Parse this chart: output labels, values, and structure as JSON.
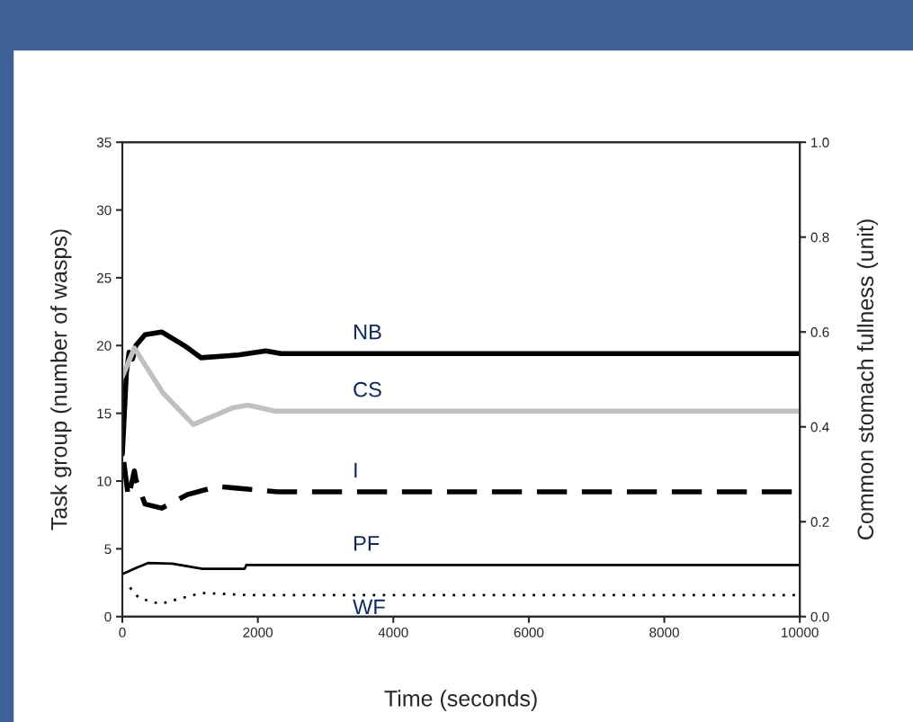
{
  "chart_data": {
    "type": "line",
    "xlabel": "Time (seconds)",
    "ylabel": "Task group (number of wasps)",
    "y2label": "Common stomach fullness (unit)",
    "xlim": [
      0,
      10000
    ],
    "xticks": [
      0,
      2000,
      4000,
      6000,
      8000,
      10000
    ],
    "ylim": [
      0,
      35
    ],
    "yticks": [
      0,
      5,
      10,
      15,
      20,
      25,
      30,
      35
    ],
    "y2lim": [
      0,
      1.0
    ],
    "y2ticks": [
      {
        "value": 0,
        "label": "0.0"
      },
      {
        "value": 0.2,
        "label": "0.2"
      },
      {
        "value": 0.4,
        "label": "0.4"
      },
      {
        "value": 0.6,
        "label": "0.6"
      },
      {
        "value": 0.8,
        "label": "0.8"
      },
      {
        "value": 1.0,
        "label": "1.0"
      }
    ],
    "grid": false,
    "legend": false,
    "series": [
      {
        "name": "NB",
        "color": "#000000",
        "line_style": "solid",
        "x": [
          0,
          30,
          60,
          100,
          150,
          200,
          335,
          580,
          914,
          1160,
          1717,
          2118,
          2341,
          10000
        ],
        "values": [
          12,
          15,
          18,
          19.5,
          19,
          20,
          20.8,
          21.0,
          20.0,
          19.1,
          19.3,
          19.6,
          19.4,
          19.4
        ]
      },
      {
        "name": "CS",
        "color": "#c0c0c0",
        "line_style": "solid",
        "axis": "y2",
        "x": [
          0,
          178,
          602,
          1048,
          1628,
          1851,
          2252,
          10000
        ],
        "values": [
          0.506,
          0.566,
          0.471,
          0.405,
          0.44,
          0.446,
          0.433,
          0.433
        ]
      },
      {
        "name": "I",
        "color": "#000000",
        "line_style": "dashed",
        "x": [
          22,
          89,
          178,
          200,
          335,
          580,
          959,
          1405,
          1851,
          2297,
          10000
        ],
        "values": [
          11.4,
          8.8,
          10.75,
          10.1,
          8.3,
          8.0,
          9.0,
          9.6,
          9.4,
          9.2,
          9.2
        ]
      },
      {
        "name": "PF",
        "color": "#000000",
        "line_style": "solid",
        "x": [
          0,
          200,
          379,
          736,
          1182,
          1806,
          1830,
          10000
        ],
        "values": [
          3.13,
          3.58,
          3.95,
          3.9,
          3.53,
          3.53,
          3.8,
          3.8
        ]
      },
      {
        "name": "WF",
        "color": "#000000",
        "line_style": "dotted",
        "x": [
          112,
          245,
          557,
          1048,
          1182,
          1851,
          10000
        ],
        "values": [
          2.14,
          1.37,
          0.93,
          1.59,
          1.74,
          1.59,
          1.59
        ]
      }
    ]
  }
}
